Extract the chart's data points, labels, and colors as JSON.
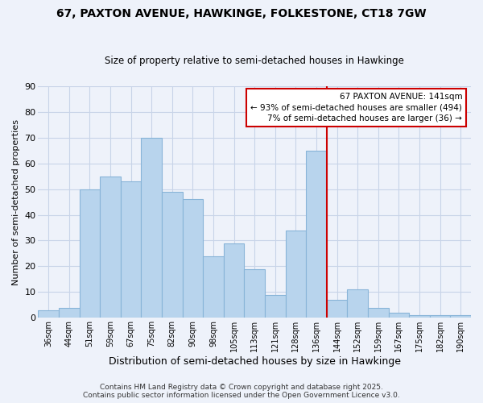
{
  "title1": "67, PAXTON AVENUE, HAWKINGE, FOLKESTONE, CT18 7GW",
  "title2": "Size of property relative to semi-detached houses in Hawkinge",
  "xlabel": "Distribution of semi-detached houses by size in Hawkinge",
  "ylabel": "Number of semi-detached properties",
  "bar_labels": [
    "36sqm",
    "44sqm",
    "51sqm",
    "59sqm",
    "67sqm",
    "75sqm",
    "82sqm",
    "90sqm",
    "98sqm",
    "105sqm",
    "113sqm",
    "121sqm",
    "128sqm",
    "136sqm",
    "144sqm",
    "152sqm",
    "159sqm",
    "167sqm",
    "175sqm",
    "182sqm",
    "190sqm"
  ],
  "bar_heights": [
    3,
    4,
    50,
    55,
    53,
    70,
    49,
    46,
    24,
    29,
    19,
    9,
    34,
    65,
    7,
    11,
    4,
    2,
    1,
    1,
    1
  ],
  "bar_color": "#b8d4ed",
  "bar_edge_color": "#88b4d8",
  "vline_x_idx": 13.5,
  "vline_color": "#cc0000",
  "annotation_title": "67 PAXTON AVENUE: 141sqm",
  "annotation_line1": "← 93% of semi-detached houses are smaller (494)",
  "annotation_line2": "7% of semi-detached houses are larger (36) →",
  "annotation_box_color": "#ffffff",
  "annotation_box_edge": "#cc0000",
  "ylim": [
    0,
    90
  ],
  "yticks": [
    0,
    10,
    20,
    30,
    40,
    50,
    60,
    70,
    80,
    90
  ],
  "footnote1": "Contains HM Land Registry data © Crown copyright and database right 2025.",
  "footnote2": "Contains public sector information licensed under the Open Government Licence v3.0.",
  "bg_color": "#eef2fa",
  "grid_color": "#c8d4e8",
  "title1_fontsize": 10,
  "title2_fontsize": 8.5,
  "xlabel_fontsize": 9,
  "ylabel_fontsize": 8,
  "tick_fontsize": 7,
  "footnote_fontsize": 6.5
}
